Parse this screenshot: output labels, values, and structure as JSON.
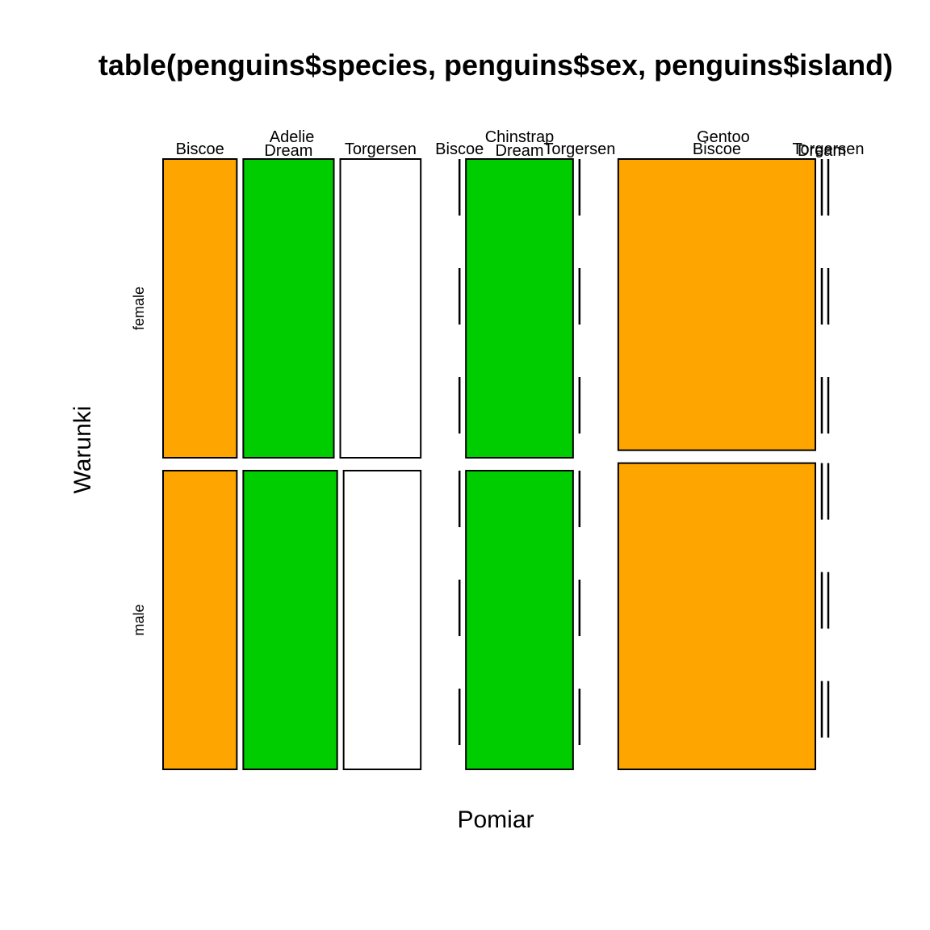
{
  "colors": {
    "Biscoe": "#FFA500",
    "Dream": "#00CD00",
    "Torgersen": "#FFFFFF",
    "stroke": "#000000",
    "background": "#FFFFFF"
  },
  "chart_data": {
    "type": "mosaic",
    "title": "table(penguins$species, penguins$sex, penguins$island)",
    "xlabel": "Pomiar",
    "ylabel": "Warunki",
    "species": [
      "Adelie",
      "Chinstrap",
      "Gentoo"
    ],
    "sexes": [
      "female",
      "male"
    ],
    "islands": [
      "Biscoe",
      "Dream",
      "Torgersen"
    ],
    "counts": {
      "Adelie": {
        "female": {
          "Biscoe": 22,
          "Dream": 27,
          "Torgersen": 24
        },
        "male": {
          "Biscoe": 22,
          "Dream": 28,
          "Torgersen": 23
        }
      },
      "Chinstrap": {
        "female": {
          "Biscoe": 0,
          "Dream": 34,
          "Torgersen": 0
        },
        "male": {
          "Biscoe": 0,
          "Dream": 34,
          "Torgersen": 0
        }
      },
      "Gentoo": {
        "female": {
          "Biscoe": 58,
          "Dream": 0,
          "Torgersen": 0
        },
        "male": {
          "Biscoe": 61,
          "Dream": 0,
          "Torgersen": 0
        }
      }
    }
  }
}
